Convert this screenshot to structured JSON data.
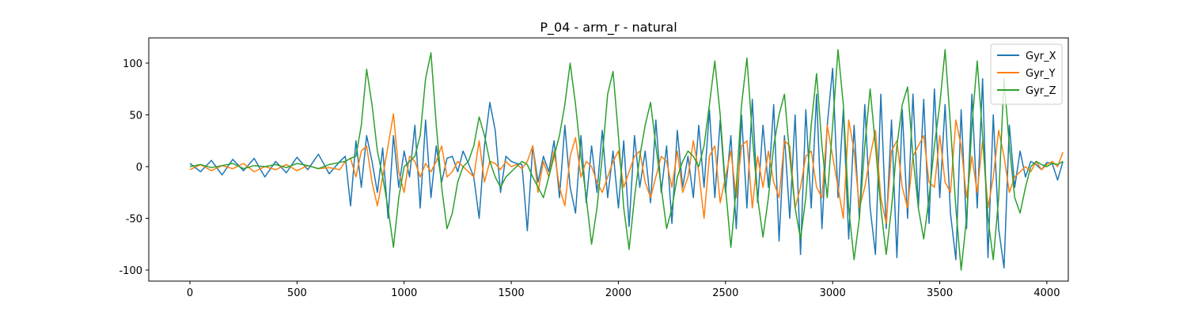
{
  "chart_data": {
    "type": "line",
    "title": "P_04 - arm_r - natural",
    "x": [
      0,
      50,
      100,
      150,
      200,
      250,
      300,
      350,
      400,
      450,
      500,
      550,
      600,
      650,
      700,
      725,
      750,
      775,
      800,
      825,
      850,
      875,
      900,
      925,
      950,
      975,
      1000,
      1025,
      1050,
      1075,
      1100,
      1125,
      1150,
      1175,
      1200,
      1225,
      1250,
      1275,
      1300,
      1325,
      1350,
      1375,
      1400,
      1425,
      1450,
      1475,
      1500,
      1525,
      1550,
      1575,
      1600,
      1625,
      1650,
      1675,
      1700,
      1725,
      1750,
      1775,
      1800,
      1825,
      1850,
      1875,
      1900,
      1925,
      1950,
      1975,
      2000,
      2025,
      2050,
      2075,
      2100,
      2125,
      2150,
      2175,
      2200,
      2225,
      2250,
      2275,
      2300,
      2325,
      2350,
      2375,
      2400,
      2425,
      2450,
      2475,
      2500,
      2525,
      2550,
      2575,
      2600,
      2625,
      2650,
      2675,
      2700,
      2725,
      2750,
      2775,
      2800,
      2825,
      2850,
      2875,
      2900,
      2925,
      2950,
      2975,
      3000,
      3025,
      3050,
      3075,
      3100,
      3125,
      3150,
      3175,
      3200,
      3225,
      3250,
      3275,
      3300,
      3325,
      3350,
      3375,
      3400,
      3425,
      3450,
      3475,
      3500,
      3525,
      3550,
      3575,
      3600,
      3625,
      3650,
      3675,
      3700,
      3725,
      3750,
      3775,
      3800,
      3825,
      3850,
      3875,
      3900,
      3925,
      3950,
      3975,
      4000,
      4025,
      4050,
      4075
    ],
    "series": [
      {
        "name": "Gyr_X",
        "color": "#1f77b4",
        "values": [
          3,
          -5,
          6,
          -8,
          7,
          -4,
          8,
          -10,
          5,
          -6,
          9,
          -3,
          12,
          -7,
          5,
          10,
          -38,
          25,
          -20,
          30,
          5,
          -25,
          18,
          -50,
          30,
          -20,
          15,
          -10,
          40,
          -40,
          45,
          -30,
          20,
          -15,
          8,
          10,
          -5,
          15,
          3,
          -10,
          -50,
          20,
          62,
          35,
          -25,
          10,
          5,
          3,
          2,
          -62,
          20,
          -15,
          10,
          -5,
          25,
          -30,
          40,
          -20,
          -45,
          30,
          -35,
          20,
          -25,
          35,
          -30,
          15,
          -40,
          25,
          -58,
          30,
          -20,
          15,
          -35,
          45,
          -25,
          20,
          -55,
          35,
          -20,
          10,
          -30,
          40,
          -20,
          55,
          -30,
          45,
          -25,
          30,
          -60,
          50,
          -40,
          65,
          -35,
          40,
          -20,
          60,
          -72,
          30,
          -50,
          50,
          -85,
          55,
          -40,
          70,
          -60,
          40,
          95,
          -30,
          55,
          -70,
          40,
          -50,
          60,
          -40,
          -85,
          70,
          -60,
          45,
          -88,
          55,
          -50,
          70,
          -40,
          65,
          -55,
          75,
          -30,
          60,
          -45,
          -90,
          55,
          -60,
          70,
          -40,
          85,
          -88,
          50,
          -60,
          -98,
          40,
          -20,
          15,
          -10,
          5,
          2,
          -3,
          4,
          3,
          -13,
          5
        ]
      },
      {
        "name": "Gyr_Y",
        "color": "#ff7f0e",
        "values": [
          -3,
          2,
          -4,
          1,
          -2,
          3,
          -5,
          0,
          -3,
          2,
          -4,
          1,
          -2,
          -1,
          -3,
          5,
          8,
          -10,
          15,
          20,
          -15,
          -38,
          -10,
          20,
          51,
          -5,
          -25,
          10,
          5,
          -10,
          3,
          -5,
          5,
          20,
          -10,
          -5,
          5,
          0,
          -5,
          -10,
          25,
          -15,
          5,
          3,
          -3,
          5,
          0,
          2,
          -2,
          5,
          20,
          -25,
          5,
          -10,
          15,
          -20,
          -38,
          10,
          28,
          -10,
          5,
          0,
          -15,
          -25,
          -10,
          5,
          15,
          -20,
          -5,
          10,
          15,
          -15,
          -30,
          -10,
          10,
          5,
          -20,
          15,
          -25,
          -10,
          25,
          -5,
          -50,
          10,
          20,
          -35,
          -10,
          15,
          -30,
          20,
          25,
          -40,
          10,
          -20,
          15,
          -15,
          -30,
          25,
          20,
          -40,
          -20,
          10,
          15,
          -20,
          -30,
          40,
          10,
          -20,
          -50,
          45,
          15,
          -40,
          -20,
          10,
          35,
          -30,
          -55,
          15,
          25,
          -20,
          -40,
          10,
          20,
          30,
          -15,
          -20,
          30,
          -15,
          -25,
          45,
          20,
          -30,
          10,
          -25,
          25,
          -40,
          -10,
          35,
          10,
          -25,
          -10,
          -5,
          0,
          -5,
          5,
          -3,
          2,
          5,
          0,
          14
        ]
      },
      {
        "name": "Gyr_Z",
        "color": "#2ca02c",
        "values": [
          0,
          2,
          -1,
          1,
          3,
          -2,
          1,
          0,
          2,
          -1,
          3,
          1,
          -2,
          2,
          4,
          5,
          8,
          10,
          40,
          94,
          60,
          15,
          -10,
          -40,
          -78,
          -30,
          0,
          5,
          10,
          30,
          85,
          110,
          40,
          -20,
          -60,
          -45,
          -15,
          0,
          5,
          20,
          48,
          30,
          5,
          -10,
          -20,
          -10,
          -5,
          0,
          5,
          2,
          -10,
          -20,
          -30,
          -10,
          10,
          30,
          60,
          100,
          60,
          10,
          -30,
          -75,
          -40,
          10,
          70,
          92,
          30,
          -40,
          -80,
          -30,
          10,
          40,
          62,
          20,
          -20,
          -60,
          -40,
          -10,
          5,
          15,
          10,
          0,
          20,
          60,
          102,
          50,
          -20,
          -78,
          -20,
          60,
          105,
          30,
          -30,
          -68,
          -30,
          20,
          50,
          70,
          10,
          -40,
          -70,
          -30,
          40,
          90,
          20,
          -30,
          40,
          113,
          60,
          -40,
          -90,
          -50,
          20,
          75,
          20,
          -40,
          -85,
          -40,
          20,
          60,
          77,
          10,
          -40,
          -70,
          -30,
          20,
          60,
          113,
          40,
          -40,
          -100,
          -50,
          40,
          102,
          30,
          -50,
          -90,
          -30,
          85,
          20,
          -30,
          -45,
          -20,
          0,
          5,
          2,
          0,
          3,
          2,
          5
        ]
      }
    ],
    "xlim": [
      -192,
      4100
    ],
    "xticks": [
      0,
      500,
      1000,
      1500,
      2000,
      2500,
      3000,
      3500,
      4000
    ],
    "ylim": [
      -110.7,
      124.4
    ],
    "yticks": [
      -100,
      -50,
      0,
      50,
      100
    ],
    "grid": false,
    "legend": "upper right"
  }
}
